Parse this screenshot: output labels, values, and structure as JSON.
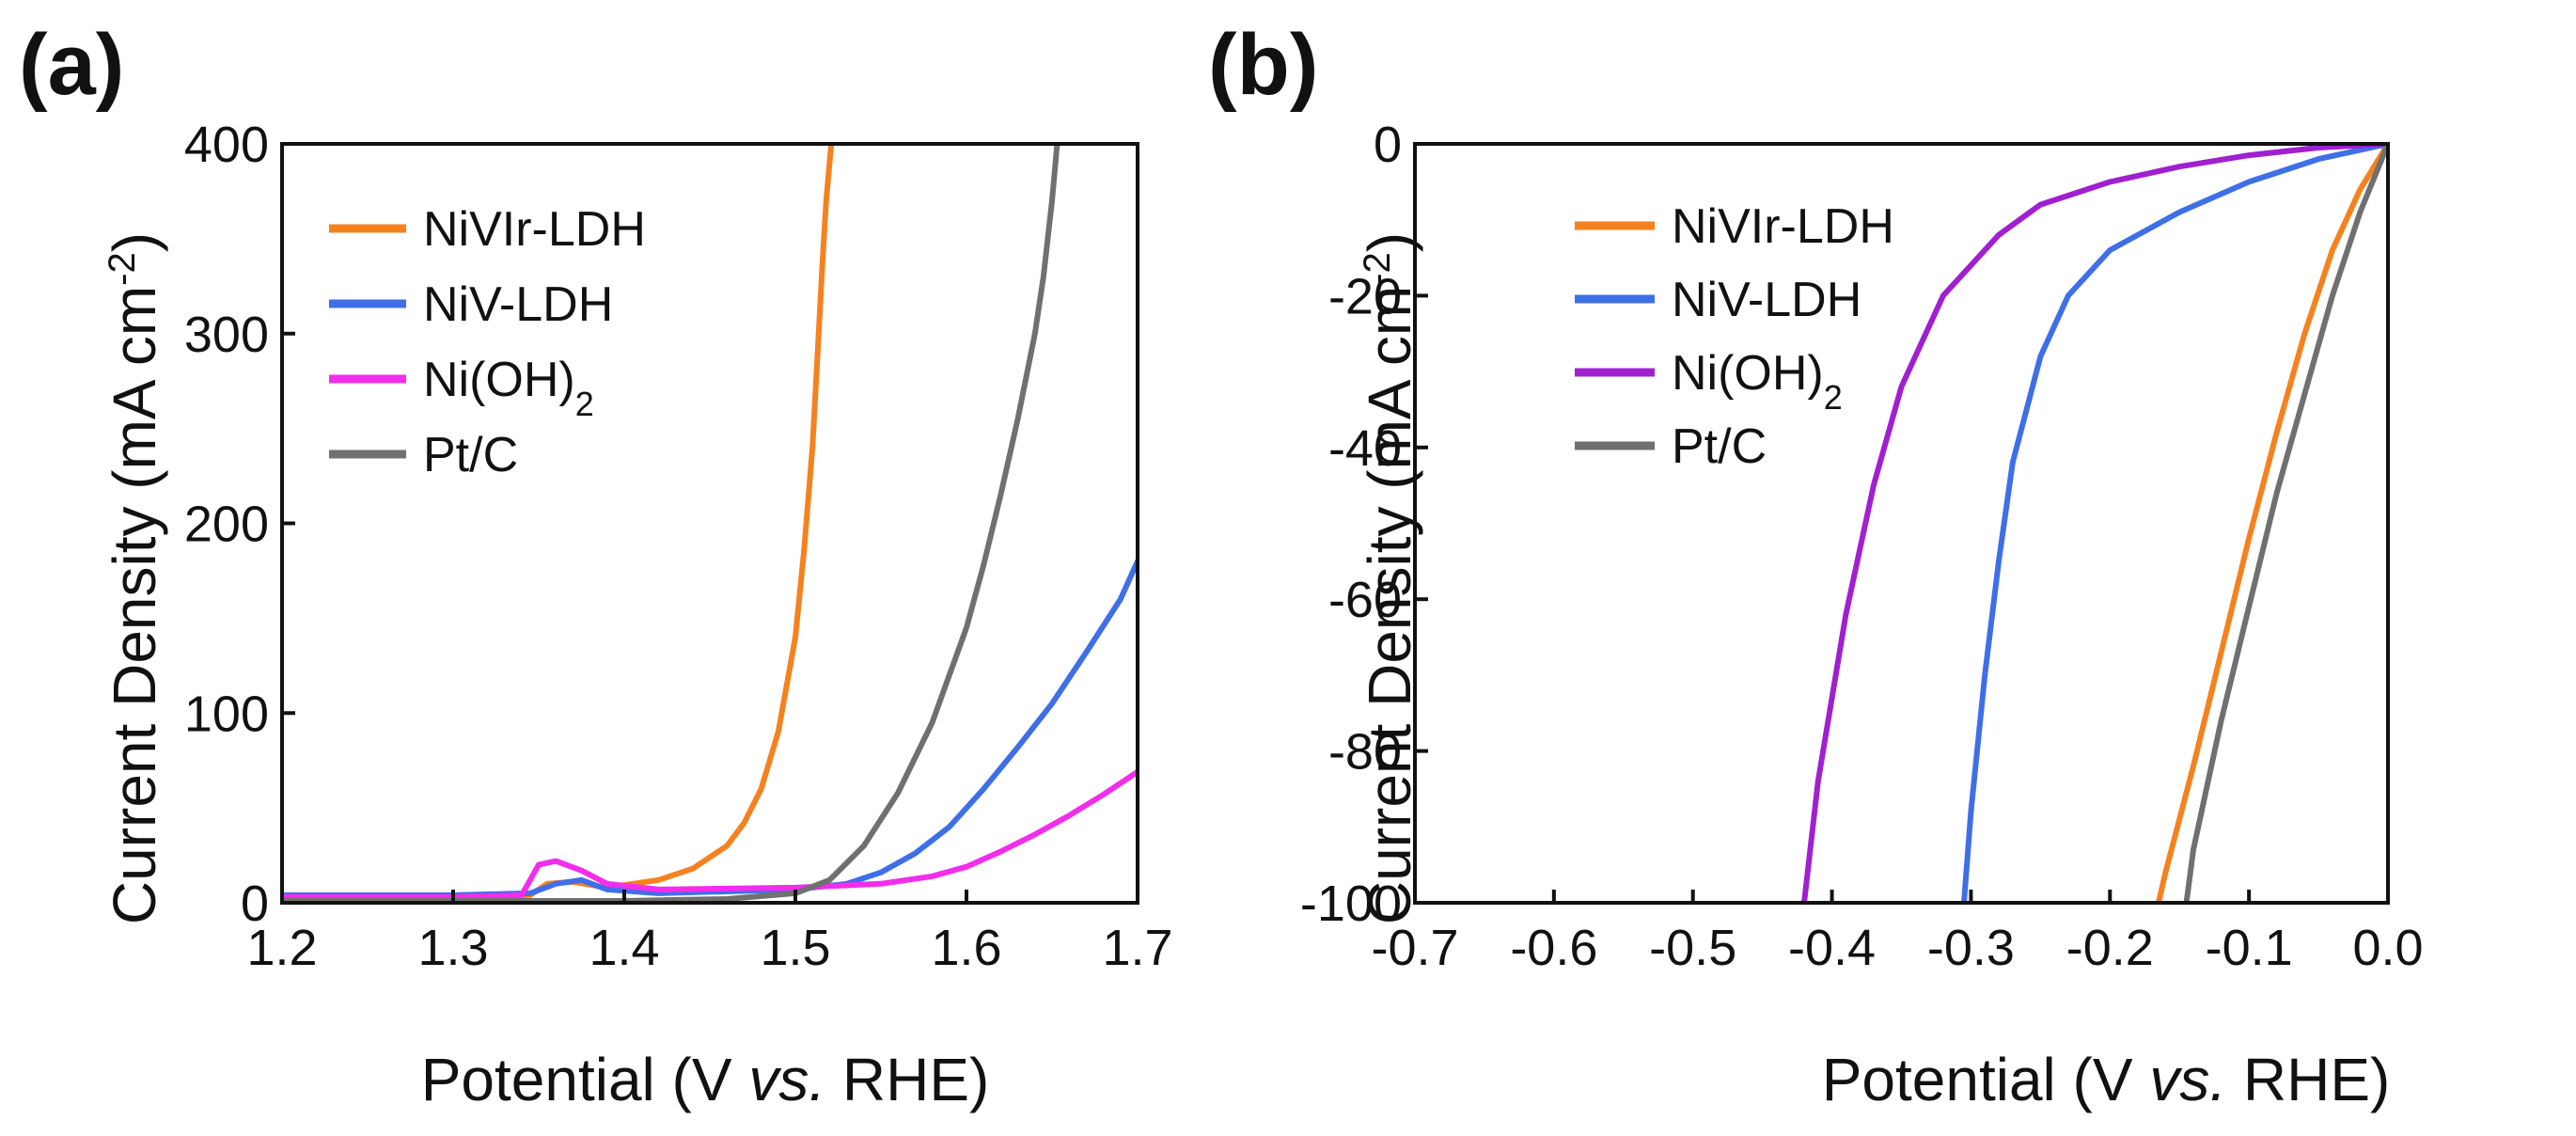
{
  "chart_data": [
    {
      "panel_label": "(a)",
      "type": "line",
      "xlabel_parts": [
        "Potential (V ",
        "vs.",
        " RHE)"
      ],
      "ylabel_parts": [
        "Current Density (mA cm",
        "-2",
        ")"
      ],
      "xlim": [
        1.2,
        1.7
      ],
      "ylim": [
        0,
        400
      ],
      "xticks": [
        1.2,
        1.3,
        1.4,
        1.5,
        1.6,
        1.7
      ],
      "xtick_labels": [
        "1.2",
        "1.3",
        "1.4",
        "1.5",
        "1.6",
        "1.7"
      ],
      "yticks": [
        0,
        100,
        200,
        300,
        400
      ],
      "ytick_labels": [
        "0",
        "100",
        "200",
        "300",
        "400"
      ],
      "grid": false,
      "legend_position": "top-left",
      "series": [
        {
          "name": "NiVIr-LDH",
          "legend_label": "NiVIr-LDH",
          "color": "#F5821F",
          "x": [
            1.2,
            1.3,
            1.345,
            1.355,
            1.37,
            1.39,
            1.42,
            1.44,
            1.46,
            1.47,
            1.48,
            1.49,
            1.5,
            1.505,
            1.51,
            1.513,
            1.516,
            1.518,
            1.52,
            1.521
          ],
          "y": [
            3,
            3,
            4,
            10,
            11,
            8,
            12,
            18,
            30,
            42,
            60,
            90,
            140,
            185,
            240,
            290,
            340,
            370,
            390,
            400
          ]
        },
        {
          "name": "NiV-LDH",
          "legend_label": "NiV-LDH",
          "color": "#3F6FE8",
          "x": [
            1.2,
            1.3,
            1.345,
            1.36,
            1.375,
            1.39,
            1.42,
            1.5,
            1.53,
            1.55,
            1.57,
            1.59,
            1.61,
            1.63,
            1.65,
            1.67,
            1.69,
            1.7
          ],
          "y": [
            4,
            4,
            5,
            10,
            12,
            7,
            5,
            7,
            10,
            16,
            26,
            40,
            60,
            82,
            105,
            132,
            160,
            180
          ]
        },
        {
          "name": "Ni(OH)2",
          "legend_label": "Ni(OH)",
          "legend_sub": "2",
          "color": "#F22DEB",
          "x": [
            1.2,
            1.3,
            1.34,
            1.35,
            1.36,
            1.375,
            1.39,
            1.42,
            1.5,
            1.55,
            1.58,
            1.6,
            1.62,
            1.64,
            1.66,
            1.68,
            1.7
          ],
          "y": [
            3,
            3,
            4,
            20,
            22,
            17,
            10,
            7,
            8,
            10,
            14,
            19,
            27,
            36,
            46,
            57,
            69
          ]
        },
        {
          "name": "Pt/C",
          "legend_label": "Pt/C",
          "color": "#707070",
          "x": [
            1.2,
            1.3,
            1.4,
            1.46,
            1.5,
            1.52,
            1.54,
            1.56,
            1.58,
            1.6,
            1.61,
            1.62,
            1.63,
            1.64,
            1.645,
            1.65,
            1.653
          ],
          "y": [
            1,
            1,
            1,
            2,
            5,
            12,
            30,
            58,
            95,
            145,
            178,
            215,
            255,
            300,
            330,
            370,
            400
          ]
        }
      ]
    },
    {
      "panel_label": "(b)",
      "type": "line",
      "xlabel_parts": [
        "Potential (V ",
        "vs.",
        " RHE)"
      ],
      "ylabel_parts": [
        "Current Density (mA cm",
        "-2",
        ")"
      ],
      "xlim": [
        -0.7,
        0.0
      ],
      "ylim": [
        -100,
        0
      ],
      "xticks": [
        -0.7,
        -0.6,
        -0.5,
        -0.4,
        -0.3,
        -0.2,
        -0.1,
        0.0
      ],
      "xtick_labels": [
        "-0.7",
        "-0.6",
        "-0.5",
        "-0.4",
        "-0.3",
        "-0.2",
        "-0.1",
        "0.0"
      ],
      "yticks": [
        -100,
        -80,
        -60,
        -40,
        -20,
        0
      ],
      "ytick_labels": [
        "-100",
        "-80",
        "-60",
        "-40",
        "-20",
        "0"
      ],
      "grid": false,
      "legend_position": "top-left",
      "series": [
        {
          "name": "NiVIr-LDH",
          "legend_label": "NiVIr-LDH",
          "color": "#F5821F",
          "x": [
            0.0,
            -0.02,
            -0.04,
            -0.06,
            -0.08,
            -0.1,
            -0.12,
            -0.14,
            -0.16,
            -0.165
          ],
          "y": [
            0,
            -6,
            -14,
            -25,
            -38,
            -52,
            -67,
            -82,
            -96,
            -100
          ]
        },
        {
          "name": "NiV-LDH",
          "legend_label": "NiV-LDH",
          "color": "#3F6FE8",
          "x": [
            0.0,
            -0.05,
            -0.1,
            -0.15,
            -0.2,
            -0.23,
            -0.25,
            -0.27,
            -0.28,
            -0.29,
            -0.3,
            -0.305
          ],
          "y": [
            0,
            -2,
            -5,
            -9,
            -14,
            -20,
            -28,
            -42,
            -55,
            -70,
            -88,
            -100
          ]
        },
        {
          "name": "Ni(OH)2",
          "legend_label": "Ni(OH)",
          "legend_sub": "2",
          "color": "#A020D0",
          "x": [
            0.0,
            -0.05,
            -0.1,
            -0.15,
            -0.2,
            -0.25,
            -0.28,
            -0.32,
            -0.35,
            -0.37,
            -0.39,
            -0.41,
            -0.42
          ],
          "y": [
            0,
            -0.5,
            -1.5,
            -3,
            -5,
            -8,
            -12,
            -20,
            -32,
            -45,
            -62,
            -84,
            -100
          ]
        },
        {
          "name": "Pt/C",
          "legend_label": "Pt/C",
          "color": "#707070",
          "x": [
            0.0,
            -0.02,
            -0.04,
            -0.06,
            -0.08,
            -0.1,
            -0.12,
            -0.14,
            -0.145
          ],
          "y": [
            0,
            -9,
            -20,
            -33,
            -46,
            -61,
            -76,
            -93,
            -100
          ]
        }
      ]
    }
  ]
}
